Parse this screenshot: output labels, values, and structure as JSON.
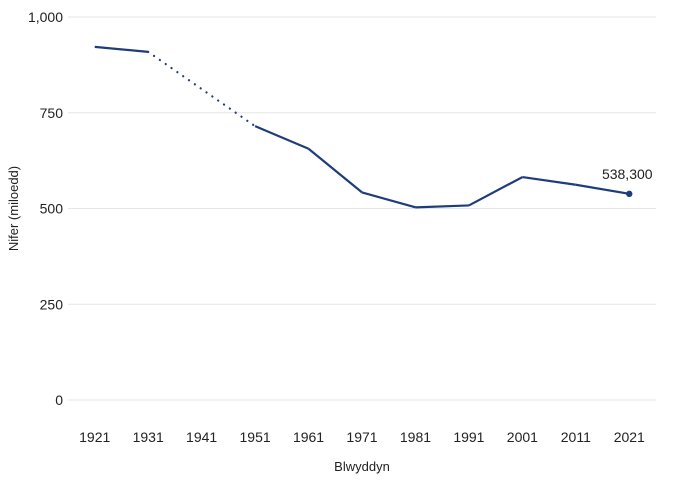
{
  "chart_data": {
    "type": "line",
    "title": "",
    "xlabel": "Blwyddyn",
    "ylabel": "Nifer (miloedd)",
    "x": [
      1921,
      1931,
      1941,
      1951,
      1961,
      1971,
      1981,
      1991,
      2001,
      2011,
      2021
    ],
    "x_tick_labels": [
      "1921",
      "1931",
      "1941",
      "1951",
      "1961",
      "1971",
      "1981",
      "1991",
      "2001",
      "2011",
      "2021"
    ],
    "y_tick_values": [
      0,
      250,
      500,
      750,
      1000
    ],
    "y_tick_labels": [
      "0",
      "250",
      "500",
      "750",
      "1,000"
    ],
    "ylim": [
      0,
      1000
    ],
    "grid": true,
    "series": [
      {
        "name": "Nifer",
        "color": "#1f3d7a",
        "points": [
          {
            "x": 1921,
            "y": 922
          },
          {
            "x": 1931,
            "y": 909
          },
          {
            "x": 1951,
            "y": 715
          },
          {
            "x": 1961,
            "y": 656
          },
          {
            "x": 1971,
            "y": 542
          },
          {
            "x": 1981,
            "y": 503
          },
          {
            "x": 1991,
            "y": 508
          },
          {
            "x": 2001,
            "y": 582
          },
          {
            "x": 2011,
            "y": 562
          },
          {
            "x": 2021,
            "y": 538.3
          }
        ],
        "interpolated_segment": {
          "from": 1931,
          "to": 1951,
          "style": "dotted"
        }
      }
    ],
    "annotations": [
      {
        "x": 2021,
        "y": 538.3,
        "text": "538,300"
      }
    ]
  }
}
